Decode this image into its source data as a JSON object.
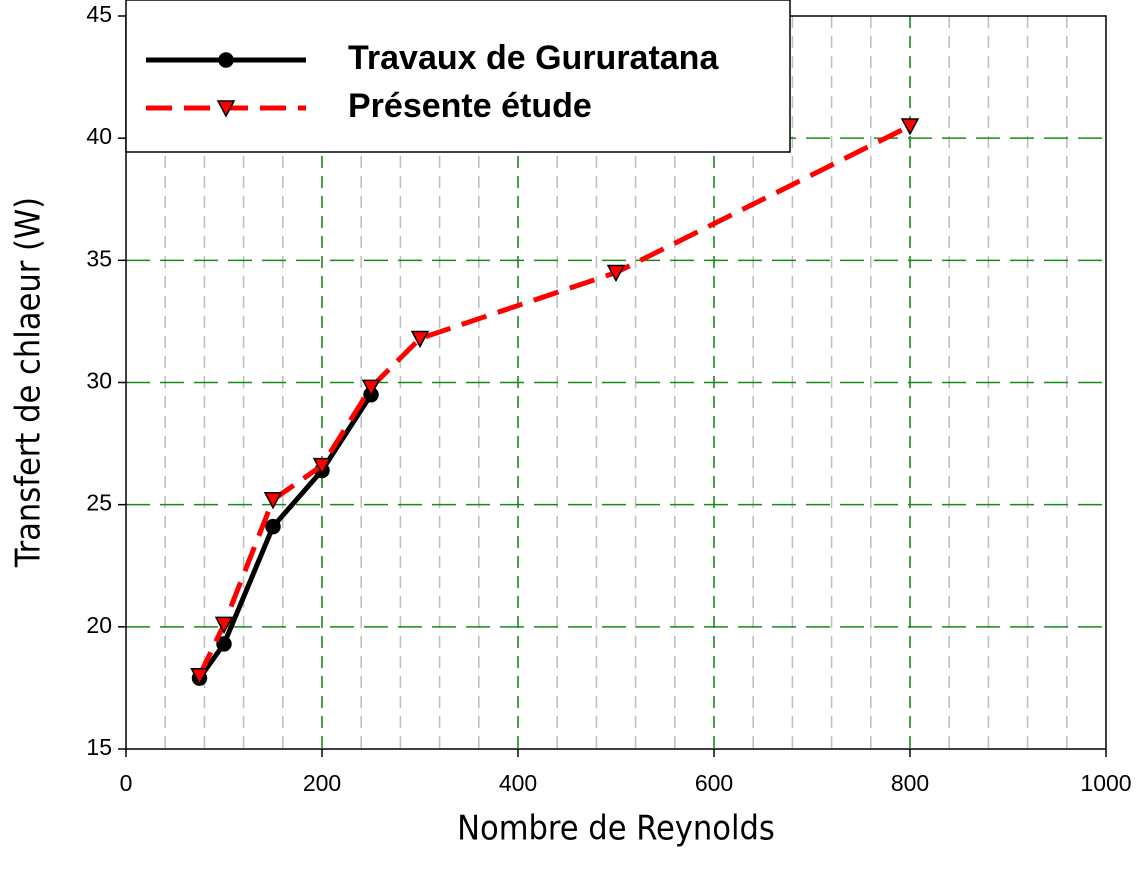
{
  "chart_data": {
    "type": "line",
    "xlabel": "Nombre de Reynolds",
    "ylabel": "Transfert de chlaeur (W)",
    "xlim": [
      0,
      1000
    ],
    "xticks": [
      0,
      200,
      400,
      600,
      800,
      1000
    ],
    "x_minor_ticks": [
      40,
      80,
      120,
      160,
      200,
      240,
      280,
      320,
      360,
      400,
      440,
      480,
      520,
      560,
      600,
      640,
      680,
      720,
      760,
      800,
      840,
      880,
      920,
      960
    ],
    "ylim": [
      15,
      45
    ],
    "yticks": [
      15,
      20,
      25,
      30,
      35,
      40,
      45
    ],
    "grid": true,
    "grid_color": "#1a8a1a",
    "minor_grid_color": "#bdbdbd",
    "legend": "upper left",
    "series": [
      {
        "name": "Travaux de Gururatana",
        "color": "#000000",
        "marker": "circle",
        "dash": "solid",
        "x": [
          75,
          100,
          150,
          200,
          250
        ],
        "values": [
          17.9,
          19.3,
          24.1,
          26.4,
          29.5
        ]
      },
      {
        "name": "Présente étude",
        "color": "#ff0000",
        "marker": "triangle-down",
        "dash": "dashed",
        "x": [
          75,
          100,
          150,
          200,
          250,
          300,
          500,
          800
        ],
        "values": [
          18.0,
          20.1,
          25.2,
          26.6,
          29.8,
          31.8,
          34.5,
          40.5
        ]
      }
    ]
  }
}
